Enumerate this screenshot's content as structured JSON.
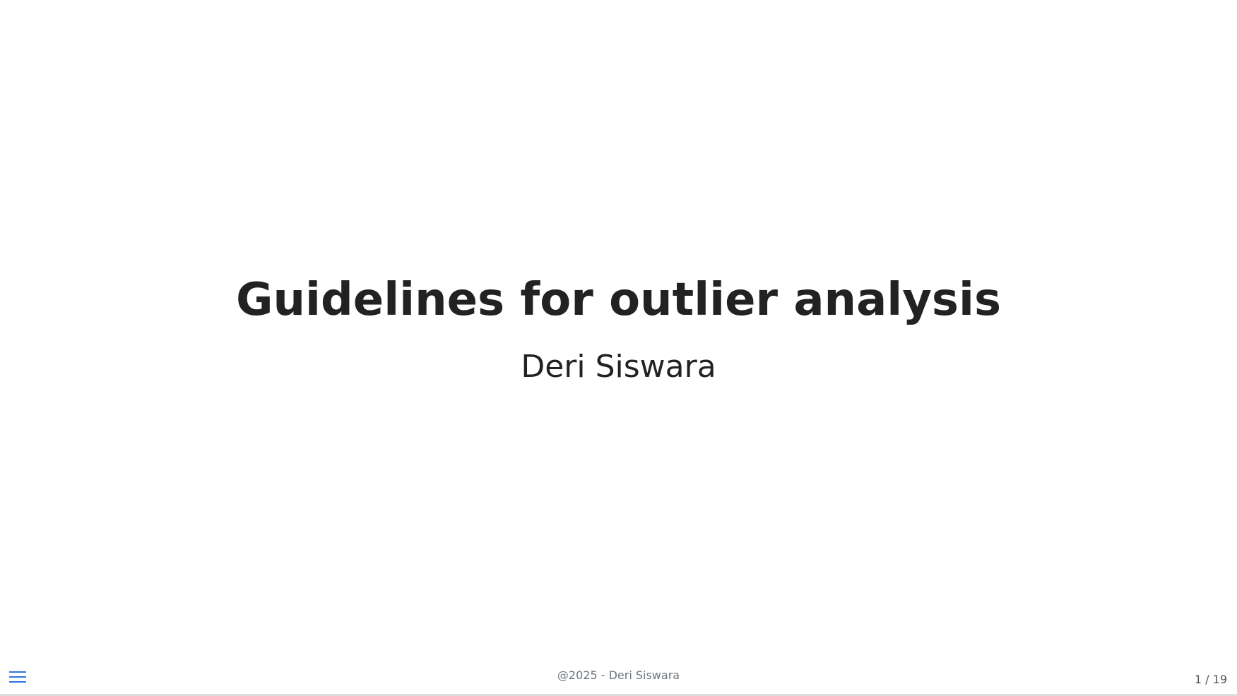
{
  "slide": {
    "title": "Guidelines for outlier analysis",
    "author": "Deri Siswara",
    "footer": "@2025 - Deri Siswara",
    "slide_number": "1 / 19",
    "current_slide": 1,
    "total_slides": 19
  },
  "controls": {
    "menu_icon": "hamburger-menu-icon"
  },
  "colors": {
    "accent": "#2a76dd",
    "text": "#222222",
    "footer_text": "#6c757d",
    "background": "#ffffff"
  }
}
